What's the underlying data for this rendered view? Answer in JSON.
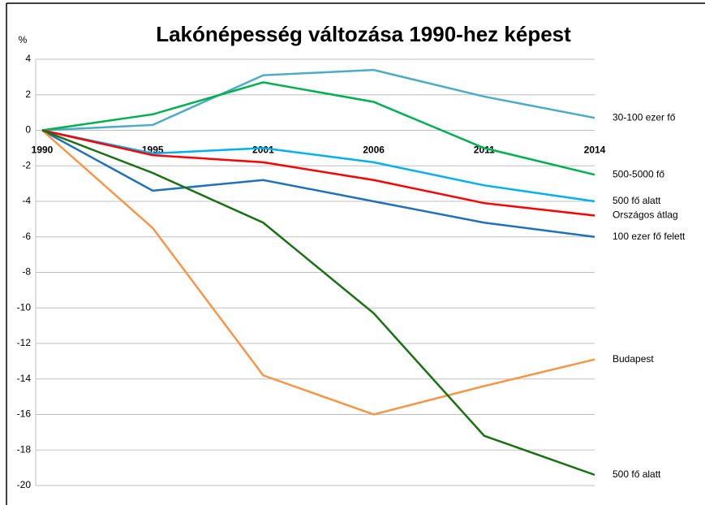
{
  "chart_data": {
    "type": "line",
    "title": "Lakónépesség változása 1990-hez képest",
    "y_label": "%",
    "categories": [
      "1990",
      "1995",
      "2001",
      "2006",
      "2011",
      "2014"
    ],
    "series": [
      {
        "name": "30-100 ezer fő",
        "color": "#4bacc6",
        "values": [
          0,
          0.3,
          3.1,
          3.4,
          1.9,
          0.7
        ]
      },
      {
        "name": "500-5000 fő",
        "color": "#00b050",
        "values": [
          0,
          0.9,
          2.7,
          1.6,
          -1.0,
          -2.5
        ]
      },
      {
        "name": "500 fő alatt",
        "color": "#00b0f0",
        "values": [
          0,
          -1.3,
          -1.0,
          -1.8,
          -3.1,
          -4.0
        ]
      },
      {
        "name": "Országos átlag",
        "color": "#ff0000",
        "values": [
          0,
          -1.4,
          -1.8,
          -2.8,
          -4.1,
          -4.8
        ]
      },
      {
        "name": "100 ezer fő felett",
        "color": "#1f72b8",
        "values": [
          0,
          -3.4,
          -2.8,
          -4.0,
          -5.2,
          -6.0
        ]
      },
      {
        "name": "Budapest",
        "color": "#f79646",
        "values": [
          0,
          -5.5,
          -13.8,
          -16.0,
          -14.4,
          -12.9
        ]
      },
      {
        "name": "500 fő alatt",
        "color": "#1a7012",
        "values": [
          0,
          -2.4,
          -5.2,
          -10.3,
          -17.2,
          -19.4
        ]
      }
    ],
    "ylim": [
      -20,
      4
    ],
    "yticks": [
      -20,
      -18,
      -16,
      -14,
      -12,
      -10,
      -8,
      -6,
      -4,
      -2,
      0,
      2,
      4
    ],
    "grid": true
  }
}
